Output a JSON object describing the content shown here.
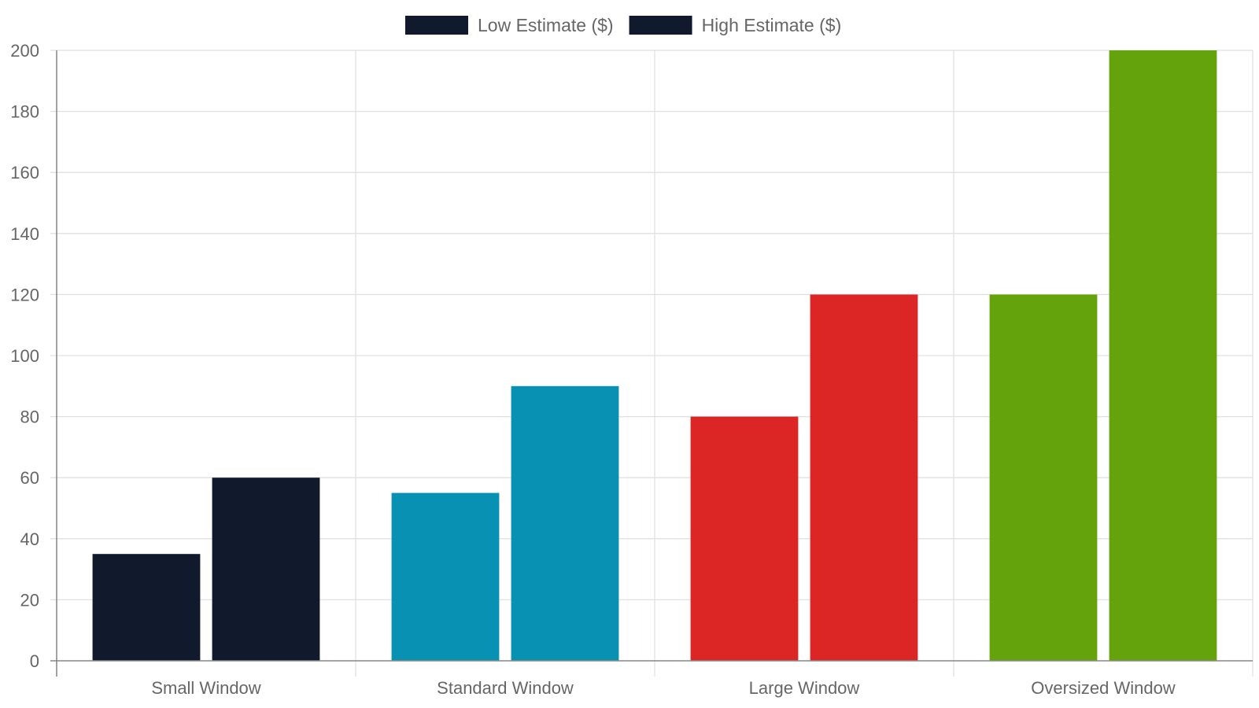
{
  "chart_data": {
    "type": "bar",
    "title": "",
    "xlabel": "",
    "ylabel": "",
    "categories": [
      "Small Window",
      "Standard Window",
      "Large Window",
      "Oversized Window"
    ],
    "series": [
      {
        "name": "Low Estimate ($)",
        "values": [
          35,
          55,
          80,
          120
        ]
      },
      {
        "name": "High Estimate ($)",
        "values": [
          60,
          90,
          120,
          200
        ]
      }
    ],
    "category_colors": [
      "#111a2c",
      "#0891b2",
      "#dc2626",
      "#65a30d"
    ],
    "legend_colors": [
      "#111a2c",
      "#111a2c"
    ],
    "ylim": [
      0,
      200
    ],
    "yticks": [
      0,
      20,
      40,
      60,
      80,
      100,
      120,
      140,
      160,
      180,
      200
    ],
    "grid": true,
    "legend_position": "top"
  }
}
